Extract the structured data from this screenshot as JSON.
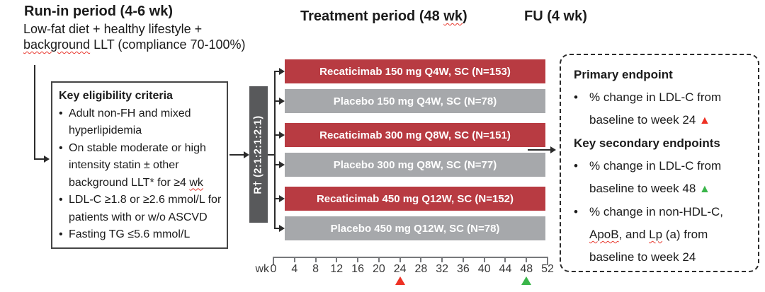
{
  "headers": {
    "runin_title": "Run-in period (4-6 wk)",
    "runin_sub_line1": "Low-fat diet + healthy lifestyle +",
    "runin_sub_line2": [
      {
        "text": "background",
        "wavy": true
      },
      {
        "text": " LLT (compliance 70-100%)"
      }
    ],
    "treatment_title": [
      {
        "text": "Treatment period (48 "
      },
      {
        "text": "wk",
        "wavy": true
      },
      {
        "text": ")"
      }
    ],
    "fu_title": "FU (4 wk)"
  },
  "eligibility": {
    "title": "Key eligibility criteria",
    "items": [
      [
        {
          "text": "Adult non-FH and mixed hyperlipidemia"
        }
      ],
      [
        {
          "text": "On stable moderate or high intensity statin ± other background LLT* for ≥4 "
        },
        {
          "text": "wk",
          "wavy": true
        }
      ],
      [
        {
          "text": "LDL-C ≥1.8 or ≥2.6 mmol/L for patients with or w/o ASCVD"
        }
      ],
      [
        {
          "text": "Fasting TG ≤5.6 mmol/L"
        }
      ]
    ]
  },
  "randomization": {
    "label": "R† (2:1:2:1:2:1)"
  },
  "arms": [
    {
      "label": "Recaticimab 150 mg Q4W, SC (N=153)",
      "type": "active"
    },
    {
      "label": "Placebo 150 mg Q4W, SC (N=78)",
      "type": "placebo"
    },
    {
      "label": "Recaticimab 300 mg Q8W, SC (N=151)",
      "type": "active"
    },
    {
      "label": "Placebo 300 mg Q8W, SC (N=77)",
      "type": "placebo"
    },
    {
      "label": "Recaticimab 450 mg Q12W, SC (N=152)",
      "type": "active"
    },
    {
      "label": "Placebo 450 mg Q12W, SC (N=78)",
      "type": "placebo"
    }
  ],
  "axis": {
    "unit_label": "wk",
    "ticks": [
      0,
      4,
      8,
      12,
      16,
      20,
      24,
      28,
      32,
      36,
      40,
      44,
      48,
      52
    ],
    "primary_marker_week": 24,
    "secondary_marker_week": 48
  },
  "endpoints": {
    "primary_title": "Primary endpoint",
    "primary_items": [
      [
        {
          "text": "% change in LDL-C from baseline to week 24 "
        },
        {
          "marker": "red-triangle"
        }
      ]
    ],
    "secondary_title": "Key secondary endpoints",
    "secondary_items": [
      [
        {
          "text": "% change in LDL-C from baseline to week 48 "
        },
        {
          "marker": "green-triangle"
        }
      ],
      [
        {
          "text": "% change in non-HDL-C, "
        },
        {
          "text": "ApoB",
          "wavy": true
        },
        {
          "text": ", and "
        },
        {
          "text": "Lp",
          "wavy": true
        },
        {
          "text": " (a) from baseline to week 24"
        }
      ]
    ]
  },
  "colors": {
    "active_arm": "#B83B42",
    "placebo_arm": "#A6A8AB",
    "randomization_box": "#58595B",
    "primary_marker": "#EE3124",
    "secondary_marker": "#3AB54A"
  }
}
